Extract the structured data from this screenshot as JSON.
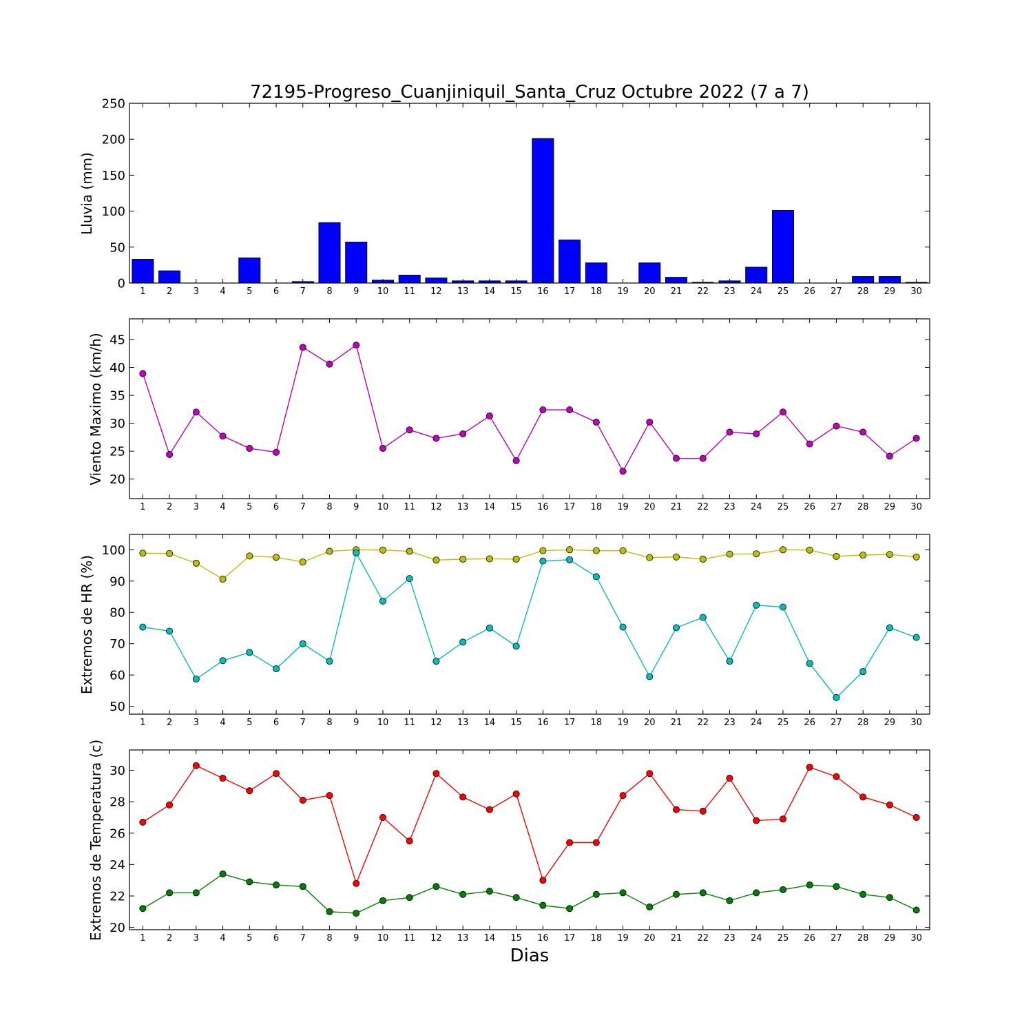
{
  "chart_data": [
    {
      "type": "bar",
      "title": "72195-Progreso_Cuanjiniquil_Santa_Cruz Octubre 2022  (7 a 7)",
      "ylabel": "Lluvia (mm)",
      "xlabel": "",
      "ylim": [
        0,
        250
      ],
      "yticks": [
        0,
        50,
        100,
        150,
        200,
        250
      ],
      "categories": [
        "1",
        "2",
        "3",
        "4",
        "5",
        "6",
        "7",
        "8",
        "9",
        "10",
        "11",
        "12",
        "13",
        "14",
        "15",
        "16",
        "17",
        "18",
        "19",
        "20",
        "21",
        "22",
        "23",
        "24",
        "25",
        "26",
        "27",
        "28",
        "29",
        "30"
      ],
      "color": "#0000ff",
      "values": [
        33,
        17,
        0,
        0,
        35,
        0,
        2,
        84,
        57,
        4,
        11,
        7,
        3,
        3,
        3,
        201,
        60,
        28,
        0,
        28,
        8,
        1,
        3,
        22,
        101,
        0,
        0,
        9,
        9,
        1
      ]
    },
    {
      "type": "line",
      "title": "",
      "ylabel": "Viento Maximo (km/h)",
      "xlabel": "",
      "ylim": [
        16.5,
        48.7
      ],
      "yticks": [
        20,
        25,
        30,
        35,
        40,
        45
      ],
      "categories": [
        "1",
        "2",
        "3",
        "4",
        "5",
        "6",
        "7",
        "8",
        "9",
        "10",
        "11",
        "12",
        "13",
        "14",
        "15",
        "16",
        "17",
        "18",
        "19",
        "20",
        "21",
        "22",
        "23",
        "24",
        "25",
        "26",
        "27",
        "28",
        "29",
        "30"
      ],
      "series": [
        {
          "color": "#bf00bf",
          "values": [
            38.9,
            24.4,
            32.0,
            27.7,
            25.5,
            24.8,
            43.6,
            40.6,
            44.0,
            25.5,
            28.8,
            27.3,
            28.1,
            31.3,
            23.3,
            32.4,
            32.4,
            30.2,
            21.4,
            30.2,
            23.7,
            23.7,
            28.4,
            28.1,
            32.0,
            26.3,
            29.5,
            28.4,
            24.1,
            27.3
          ]
        }
      ]
    },
    {
      "type": "line",
      "title": "",
      "ylabel": "Extremos de HR (%)",
      "xlabel": "",
      "ylim": [
        47.5,
        104.9
      ],
      "yticks": [
        50,
        60,
        70,
        80,
        90,
        100
      ],
      "categories": [
        "1",
        "2",
        "3",
        "4",
        "5",
        "6",
        "7",
        "8",
        "9",
        "10",
        "11",
        "12",
        "13",
        "14",
        "15",
        "16",
        "17",
        "18",
        "19",
        "20",
        "21",
        "22",
        "23",
        "24",
        "25",
        "26",
        "27",
        "28",
        "29",
        "30"
      ],
      "series": [
        {
          "color": "#bfbf00",
          "values": [
            98.9,
            98.8,
            95.7,
            90.6,
            98.0,
            97.6,
            96.1,
            99.5,
            100.0,
            99.9,
            99.5,
            96.7,
            97.0,
            97.1,
            97.0,
            99.7,
            100.0,
            99.7,
            99.7,
            97.5,
            97.7,
            97.0,
            98.6,
            98.7,
            100.0,
            99.9,
            97.9,
            98.3,
            98.5,
            97.7
          ]
        },
        {
          "color": "#00bfbf",
          "values": [
            75.3,
            74.0,
            58.7,
            64.6,
            67.2,
            62.0,
            70.0,
            64.4,
            99.0,
            83.6,
            90.8,
            64.4,
            70.5,
            75.0,
            69.2,
            96.4,
            96.8,
            91.4,
            75.3,
            59.5,
            75.1,
            78.4,
            64.4,
            82.3,
            81.7,
            63.7,
            52.8,
            61.1,
            75.1,
            72.0
          ]
        }
      ]
    },
    {
      "type": "line",
      "title": "",
      "ylabel": "Extremos de Temperatura (c)",
      "xlabel": "Dias",
      "ylim": [
        19.85,
        31.3
      ],
      "yticks": [
        20,
        22,
        24,
        26,
        28,
        30
      ],
      "categories": [
        "1",
        "2",
        "3",
        "4",
        "5",
        "6",
        "7",
        "8",
        "9",
        "10",
        "11",
        "12",
        "13",
        "14",
        "15",
        "16",
        "17",
        "18",
        "19",
        "20",
        "21",
        "22",
        "23",
        "24",
        "25",
        "26",
        "27",
        "28",
        "29",
        "30"
      ],
      "series": [
        {
          "color": "#ff0000",
          "values": [
            26.7,
            27.8,
            30.3,
            29.5,
            28.7,
            29.8,
            28.1,
            28.4,
            22.8,
            27.0,
            25.5,
            29.8,
            28.3,
            27.5,
            28.5,
            23.0,
            25.4,
            25.4,
            28.4,
            29.8,
            27.5,
            27.4,
            29.5,
            26.8,
            26.9,
            30.2,
            29.6,
            28.3,
            27.8,
            27.0
          ]
        },
        {
          "color": "#008000",
          "values": [
            21.2,
            22.2,
            22.2,
            23.4,
            22.9,
            22.7,
            22.6,
            21.0,
            20.9,
            21.7,
            21.9,
            22.6,
            22.1,
            22.3,
            21.9,
            21.4,
            21.2,
            22.1,
            22.2,
            21.3,
            22.1,
            22.2,
            21.7,
            22.2,
            22.4,
            22.7,
            22.6,
            22.1,
            21.9,
            21.1
          ]
        }
      ]
    }
  ]
}
